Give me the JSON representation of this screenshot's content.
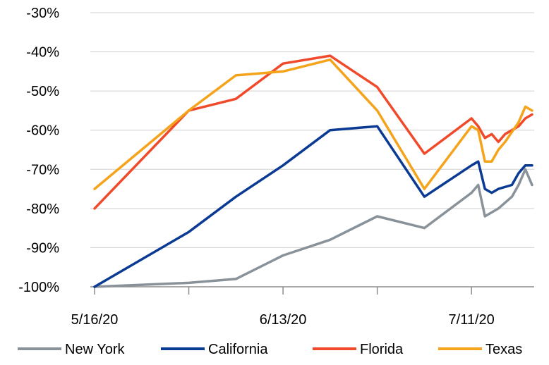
{
  "chart_data": {
    "type": "line",
    "title": "",
    "xlabel": "",
    "ylabel": "",
    "x_ticks": [
      "5/16/20",
      "6/13/20",
      "7/11/20"
    ],
    "y_ticks": [
      "-30%",
      "-40%",
      "-50%",
      "-60%",
      "-70%",
      "-80%",
      "-90%",
      "-100%"
    ],
    "ylim": [
      -100,
      -30
    ],
    "grid": "horizontal",
    "legend": "bottom",
    "series": [
      {
        "name": "New York",
        "color": "#8a9299",
        "points": [
          [
            "5/16/20",
            -100
          ],
          [
            "5/30/20",
            -99
          ],
          [
            "6/6/20",
            -98
          ],
          [
            "6/13/20",
            -92
          ],
          [
            "6/20/20",
            -88
          ],
          [
            "6/27/20",
            -82
          ],
          [
            "7/4/20",
            -85
          ],
          [
            "7/11/20",
            -76
          ],
          [
            "7/12/20",
            -74
          ],
          [
            "7/13/20",
            -82
          ],
          [
            "7/15/20",
            -80
          ],
          [
            "7/17/20",
            -77
          ],
          [
            "7/18/20",
            -74
          ],
          [
            "7/19/20",
            -70
          ],
          [
            "7/20/20",
            -74
          ]
        ]
      },
      {
        "name": "California",
        "color": "#0a3a94",
        "points": [
          [
            "5/16/20",
            -100
          ],
          [
            "5/30/20",
            -86
          ],
          [
            "6/6/20",
            -77
          ],
          [
            "6/13/20",
            -69
          ],
          [
            "6/20/20",
            -60
          ],
          [
            "6/27/20",
            -59
          ],
          [
            "7/4/20",
            -77
          ],
          [
            "7/11/20",
            -69
          ],
          [
            "7/12/20",
            -68
          ],
          [
            "7/13/20",
            -75
          ],
          [
            "7/14/20",
            -76
          ],
          [
            "7/15/20",
            -75
          ],
          [
            "7/17/20",
            -74
          ],
          [
            "7/18/20",
            -71
          ],
          [
            "7/19/20",
            -69
          ],
          [
            "7/20/20",
            -69
          ]
        ]
      },
      {
        "name": "Florida",
        "color": "#f04a2a",
        "points": [
          [
            "5/16/20",
            -80
          ],
          [
            "5/30/20",
            -55
          ],
          [
            "6/6/20",
            -52
          ],
          [
            "6/13/20",
            -43
          ],
          [
            "6/20/20",
            -41
          ],
          [
            "6/27/20",
            -49
          ],
          [
            "7/4/20",
            -66
          ],
          [
            "7/11/20",
            -57
          ],
          [
            "7/12/20",
            -59
          ],
          [
            "7/13/20",
            -62
          ],
          [
            "7/14/20",
            -61
          ],
          [
            "7/15/20",
            -63
          ],
          [
            "7/16/20",
            -61
          ],
          [
            "7/18/20",
            -59
          ],
          [
            "7/19/20",
            -57
          ],
          [
            "7/20/20",
            -56
          ]
        ]
      },
      {
        "name": "Texas",
        "color": "#f5a31a",
        "points": [
          [
            "5/16/20",
            -75
          ],
          [
            "5/30/20",
            -55
          ],
          [
            "6/6/20",
            -46
          ],
          [
            "6/13/20",
            -45
          ],
          [
            "6/20/20",
            -42
          ],
          [
            "6/27/20",
            -55
          ],
          [
            "7/4/20",
            -75
          ],
          [
            "7/11/20",
            -59
          ],
          [
            "7/12/20",
            -60
          ],
          [
            "7/13/20",
            -68
          ],
          [
            "7/14/20",
            -68
          ],
          [
            "7/15/20",
            -65
          ],
          [
            "7/16/20",
            -63
          ],
          [
            "7/18/20",
            -58
          ],
          [
            "7/19/20",
            -54
          ],
          [
            "7/20/20",
            -55
          ]
        ]
      }
    ]
  }
}
